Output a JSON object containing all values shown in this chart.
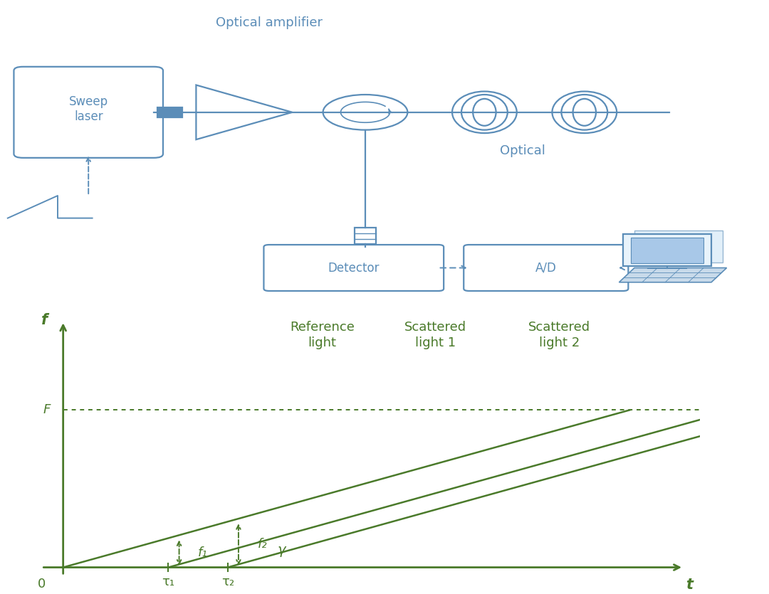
{
  "bg_color": "#ffffff",
  "dc": "#5b8db8",
  "gc": "#4a7a2a",
  "top": {
    "optical_amplifier": "Optical amplifier",
    "optical": "Optical",
    "sweep_laser": "Sweep\nlaser",
    "detector": "Detector",
    "ad": "A/D"
  },
  "bottom": {
    "reference_light": "Reference\nlight",
    "scattered_light1": "Scattered\nlight 1",
    "scattered_light2": "Scattered\nlight 2",
    "f_axis": "f",
    "t_axis": "t",
    "F_label": "F",
    "zero_label": "0",
    "tau1": "τ₁",
    "tau2": "τ₂",
    "f1": "f₁",
    "f2": "f₂",
    "gamma": "γ"
  }
}
